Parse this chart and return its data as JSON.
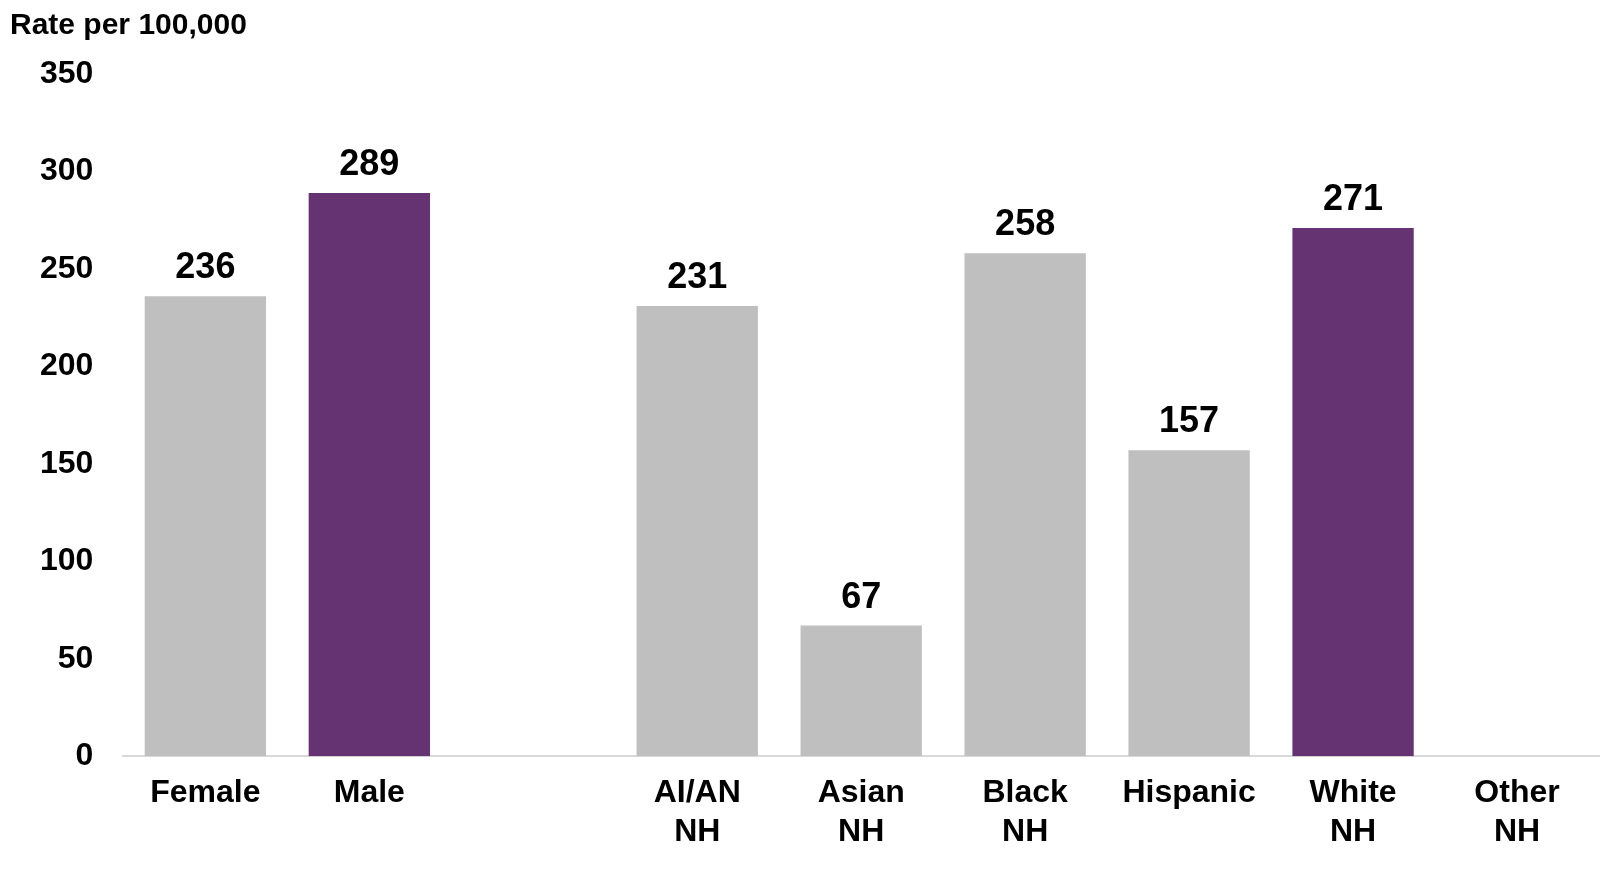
{
  "chart_data": {
    "type": "bar",
    "ylabel": "Rate per 100,000",
    "categories": [
      "Female",
      "Male",
      null,
      "AI/AN\nNH",
      "Asian\nNH",
      "Black\nNH",
      "Hispanic",
      "White\nNH",
      "Other\nNH"
    ],
    "values": [
      236,
      289,
      null,
      231,
      67,
      258,
      157,
      271,
      null
    ],
    "colors": [
      "#bfbfbf",
      "#663372",
      "#bfbfbf",
      "#bfbfbf",
      "#bfbfbf",
      "#bfbfbf",
      "#bfbfbf",
      "#663372",
      "#bfbfbf"
    ],
    "ylim": [
      0,
      350
    ],
    "yticks": [
      0,
      50,
      100,
      150,
      200,
      250,
      300,
      350
    ],
    "grid": false,
    "legend": false,
    "data_labels": true
  }
}
